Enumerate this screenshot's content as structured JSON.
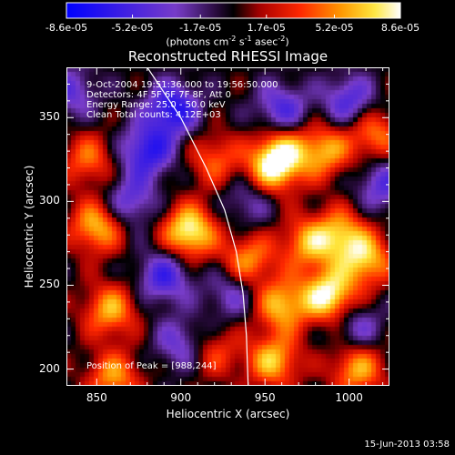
{
  "colorbar": {
    "ticks": [
      "-8.6e-05",
      "-5.2e-05",
      "-1.7e-05",
      "1.7e-05",
      "5.2e-05",
      "8.6e-05"
    ],
    "units_text": "(photons cm",
    "units_exp1": "-2",
    "units_mid1": " s",
    "units_exp2": "-1",
    "units_mid2": " asec",
    "units_exp3": "-2",
    "units_end": ")"
  },
  "title": "Reconstructed RHESSI Image",
  "info": {
    "line1": "9-Oct-2004 19:51:36.000 to 19:56:50.000",
    "line2": "Detectors: 4F 5F 6F 7F 8F, Att 0",
    "line3": "Energy Range: 25.0 - 50.0 keV",
    "line4": "Clean     Total counts: 4.12E+03"
  },
  "peak_text": "Position of Peak = [988,244]",
  "xlabel": "Heliocentric X (arcsec)",
  "ylabel": "Heliocentric Y (arcsec)",
  "footer_date": "15-Jun-2013 03:58",
  "chart_data": {
    "type": "heatmap",
    "title": "Reconstructed RHESSI Image",
    "xlabel": "Heliocentric X (arcsec)",
    "ylabel": "Heliocentric Y (arcsec)",
    "xlim": [
      832,
      1024
    ],
    "ylim": [
      190,
      380
    ],
    "xticks": [
      850,
      900,
      950,
      1000
    ],
    "yticks": [
      200,
      250,
      300,
      350
    ],
    "colorbar_range": [
      -8.6e-05,
      8.6e-05
    ],
    "colorbar_ticks": [
      -8.6e-05,
      -5.2e-05,
      -1.7e-05,
      1.7e-05,
      5.2e-05,
      8.6e-05
    ],
    "peak_position": [
      988,
      244
    ],
    "limb_curve": [
      [
        880,
        380
      ],
      [
        900,
        350
      ],
      [
        915,
        320
      ],
      [
        926,
        295
      ],
      [
        933,
        270
      ],
      [
        937,
        245
      ],
      [
        939,
        220
      ],
      [
        940,
        190
      ]
    ],
    "features": [
      {
        "x": 905,
        "y": 282,
        "v": 8.6e-05
      },
      {
        "x": 850,
        "y": 285,
        "v": 6.5e-05
      },
      {
        "x": 845,
        "y": 325,
        "v": 4.5e-05
      },
      {
        "x": 858,
        "y": 235,
        "v": 6e-05
      },
      {
        "x": 860,
        "y": 195,
        "v": 5.5e-05
      },
      {
        "x": 920,
        "y": 325,
        "v": 4.2e-05
      },
      {
        "x": 940,
        "y": 265,
        "v": 5.5e-05
      },
      {
        "x": 955,
        "y": 320,
        "v": 7e-05
      },
      {
        "x": 960,
        "y": 330,
        "v": 5e-05
      },
      {
        "x": 960,
        "y": 238,
        "v": 6.5e-05
      },
      {
        "x": 975,
        "y": 275,
        "v": 5.5e-05
      },
      {
        "x": 995,
        "y": 280,
        "v": 6e-05
      },
      {
        "x": 988,
        "y": 244,
        "v": 8.6e-05
      },
      {
        "x": 1010,
        "y": 265,
        "v": 6.5e-05
      },
      {
        "x": 985,
        "y": 330,
        "v": 6e-05
      },
      {
        "x": 1015,
        "y": 340,
        "v": 5e-05
      },
      {
        "x": 955,
        "y": 205,
        "v": 6.5e-05
      },
      {
        "x": 1005,
        "y": 200,
        "v": 6e-05
      },
      {
        "x": 920,
        "y": 210,
        "v": 3.5e-05
      },
      {
        "x": 890,
        "y": 255,
        "v": -5.5e-05
      },
      {
        "x": 880,
        "y": 330,
        "v": -6.5e-05
      },
      {
        "x": 895,
        "y": 355,
        "v": -7e-05
      },
      {
        "x": 835,
        "y": 365,
        "v": -4e-05
      },
      {
        "x": 960,
        "y": 355,
        "v": -5e-05
      },
      {
        "x": 1000,
        "y": 360,
        "v": -5e-05
      },
      {
        "x": 1020,
        "y": 310,
        "v": -4.5e-05
      },
      {
        "x": 930,
        "y": 245,
        "v": -3.5e-05
      },
      {
        "x": 900,
        "y": 215,
        "v": -4e-05
      },
      {
        "x": 870,
        "y": 300,
        "v": -4.5e-05
      },
      {
        "x": 1005,
        "y": 225,
        "v": -3.5e-05
      },
      {
        "x": 940,
        "y": 300,
        "v": -3e-05
      }
    ]
  }
}
